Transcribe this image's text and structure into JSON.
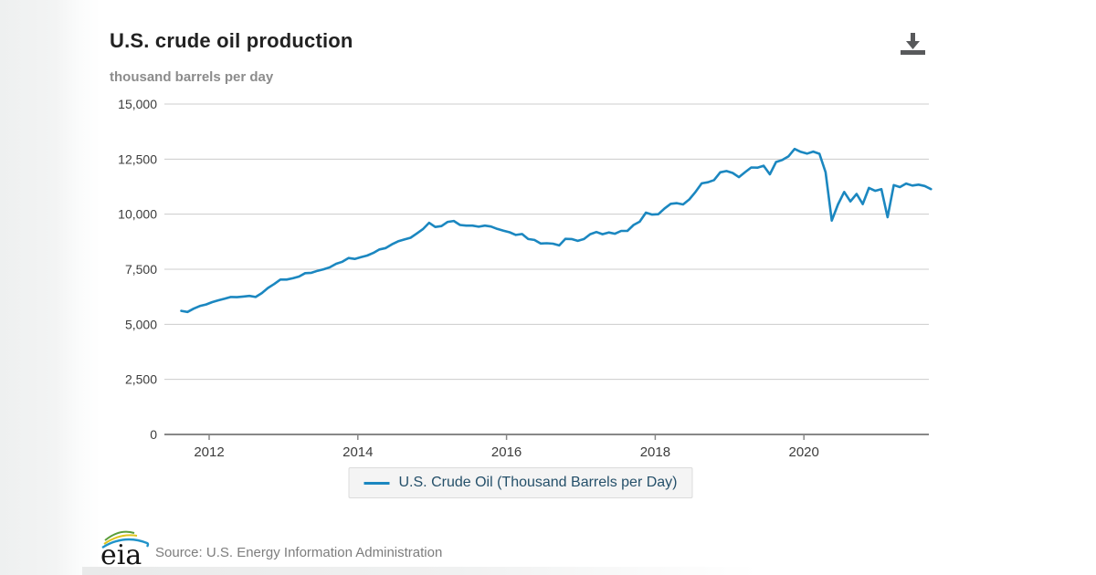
{
  "header": {
    "title": "U.S. crude oil production",
    "subtitle": "thousand barrels per day"
  },
  "toolbar": {
    "download_icon": "download-arrow-to-tray"
  },
  "legend": {
    "label": "U.S. Crude Oil (Thousand Barrels per Day)"
  },
  "footer": {
    "logo_text": "eia",
    "source_text": "Source: U.S. Energy Information Administration"
  },
  "colors": {
    "line": "#1b87c0",
    "grid": "#cccccc",
    "axis": "#888888",
    "tick_label": "#3c3c3c",
    "title": "#222222",
    "subtitle": "#8c8c8c",
    "legend_text": "#25506a",
    "legend_bg": "#f4f4f4",
    "source_text": "#7d7d7d",
    "download_icon": "#58595b"
  },
  "chart_data": {
    "type": "line",
    "title": "U.S. crude oil production",
    "ylabel": "thousand barrels per day",
    "frequency": "monthly",
    "x_start": "2011-08",
    "x_end": "2021-09",
    "grid": true,
    "legend_position": "bottom",
    "y_axis": {
      "min": 0,
      "max": 15000,
      "tick_interval": 2500,
      "tick_labels": [
        "0",
        "2,500",
        "5,000",
        "7,500",
        "10,000",
        "12,500",
        "15,000"
      ]
    },
    "x_axis": {
      "tick_years": [
        2012,
        2014,
        2016,
        2018,
        2020
      ]
    },
    "series": [
      {
        "name": "U.S. Crude Oil (Thousand Barrels per Day)",
        "color": "#1b87c0",
        "values": [
          5610,
          5560,
          5710,
          5830,
          5900,
          6010,
          6090,
          6160,
          6240,
          6230,
          6260,
          6290,
          6240,
          6420,
          6650,
          6830,
          7030,
          7030,
          7090,
          7170,
          7320,
          7340,
          7430,
          7500,
          7590,
          7750,
          7840,
          8010,
          7970,
          8050,
          8120,
          8240,
          8400,
          8460,
          8630,
          8770,
          8850,
          8930,
          9120,
          9320,
          9610,
          9420,
          9460,
          9650,
          9690,
          9510,
          9480,
          9480,
          9430,
          9480,
          9440,
          9330,
          9250,
          9180,
          9060,
          9100,
          8870,
          8830,
          8670,
          8680,
          8660,
          8580,
          8880,
          8870,
          8790,
          8870,
          9090,
          9190,
          9090,
          9170,
          9110,
          9240,
          9240,
          9510,
          9660,
          10070,
          9980,
          10000,
          10260,
          10470,
          10500,
          10440,
          10670,
          11010,
          11400,
          11450,
          11550,
          11900,
          11960,
          11870,
          11680,
          11910,
          12120,
          12110,
          12200,
          11810,
          12370,
          12460,
          12620,
          12960,
          12830,
          12750,
          12840,
          12740,
          11910,
          9710,
          10440,
          11010,
          10580,
          10920,
          10460,
          11190,
          11060,
          11140,
          9860,
          11320,
          11230,
          11390,
          11300,
          11340,
          11280,
          11140
        ]
      }
    ]
  }
}
